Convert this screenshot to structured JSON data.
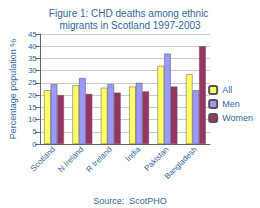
{
  "chart_data": {
    "type": "bar",
    "title": "Figure 1: CHD deaths among ethnic migrants in Scotland 1997-2003",
    "y_label": "Percentage population %",
    "annotations": [
      "Source:  ScotPHO"
    ],
    "categories": [
      "Scotland",
      "N Ireland",
      "R Ireland",
      "India",
      "Pakistan",
      "Bangladesh"
    ],
    "series": [
      {
        "name": "All",
        "color": "#ffff66",
        "values": [
          22,
          24,
          23,
          23.5,
          32,
          28.5
        ]
      },
      {
        "name": "Men",
        "color": "#9999ff",
        "values": [
          24.5,
          27,
          24.5,
          25,
          37,
          22
        ]
      },
      {
        "name": "Women",
        "color": "#993366",
        "values": [
          20,
          20.5,
          21,
          21.5,
          23.5,
          40
        ]
      }
    ],
    "ylim": [
      0,
      45
    ],
    "yticks": [
      0,
      5,
      10,
      15,
      20,
      25,
      30,
      35,
      40,
      45
    ],
    "grid": true,
    "legend": "right"
  }
}
